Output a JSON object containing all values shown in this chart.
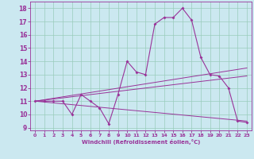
{
  "bg_color": "#cbe8f0",
  "grid_color": "#99ccbb",
  "line_color": "#993399",
  "xlabel": "Windchill (Refroidissement éolien,°C)",
  "xlim": [
    -0.5,
    23.5
  ],
  "ylim": [
    8.8,
    18.5
  ],
  "yticks": [
    9,
    10,
    11,
    12,
    13,
    14,
    15,
    16,
    17,
    18
  ],
  "xticks": [
    0,
    1,
    2,
    3,
    4,
    5,
    6,
    7,
    8,
    9,
    10,
    11,
    12,
    13,
    14,
    15,
    16,
    17,
    18,
    19,
    20,
    21,
    22,
    23
  ],
  "series": [
    {
      "x": [
        0,
        1,
        2,
        3,
        4,
        5,
        6,
        7,
        8,
        9,
        10,
        11,
        12,
        13,
        14,
        15,
        16,
        17,
        18,
        19,
        20,
        21,
        22,
        23
      ],
      "y": [
        11,
        11,
        11,
        11,
        10,
        11.5,
        11,
        10.5,
        9.3,
        11.5,
        14,
        13.2,
        13,
        16.8,
        17.3,
        17.3,
        18,
        17.1,
        14.3,
        13,
        12.9,
        12,
        9.5,
        9.4
      ],
      "marker": true
    },
    {
      "x": [
        0,
        23
      ],
      "y": [
        11,
        9.5
      ],
      "marker": false
    },
    {
      "x": [
        0,
        23
      ],
      "y": [
        11,
        12.9
      ],
      "marker": false
    },
    {
      "x": [
        0,
        23
      ],
      "y": [
        11,
        13.5
      ],
      "marker": false
    }
  ]
}
